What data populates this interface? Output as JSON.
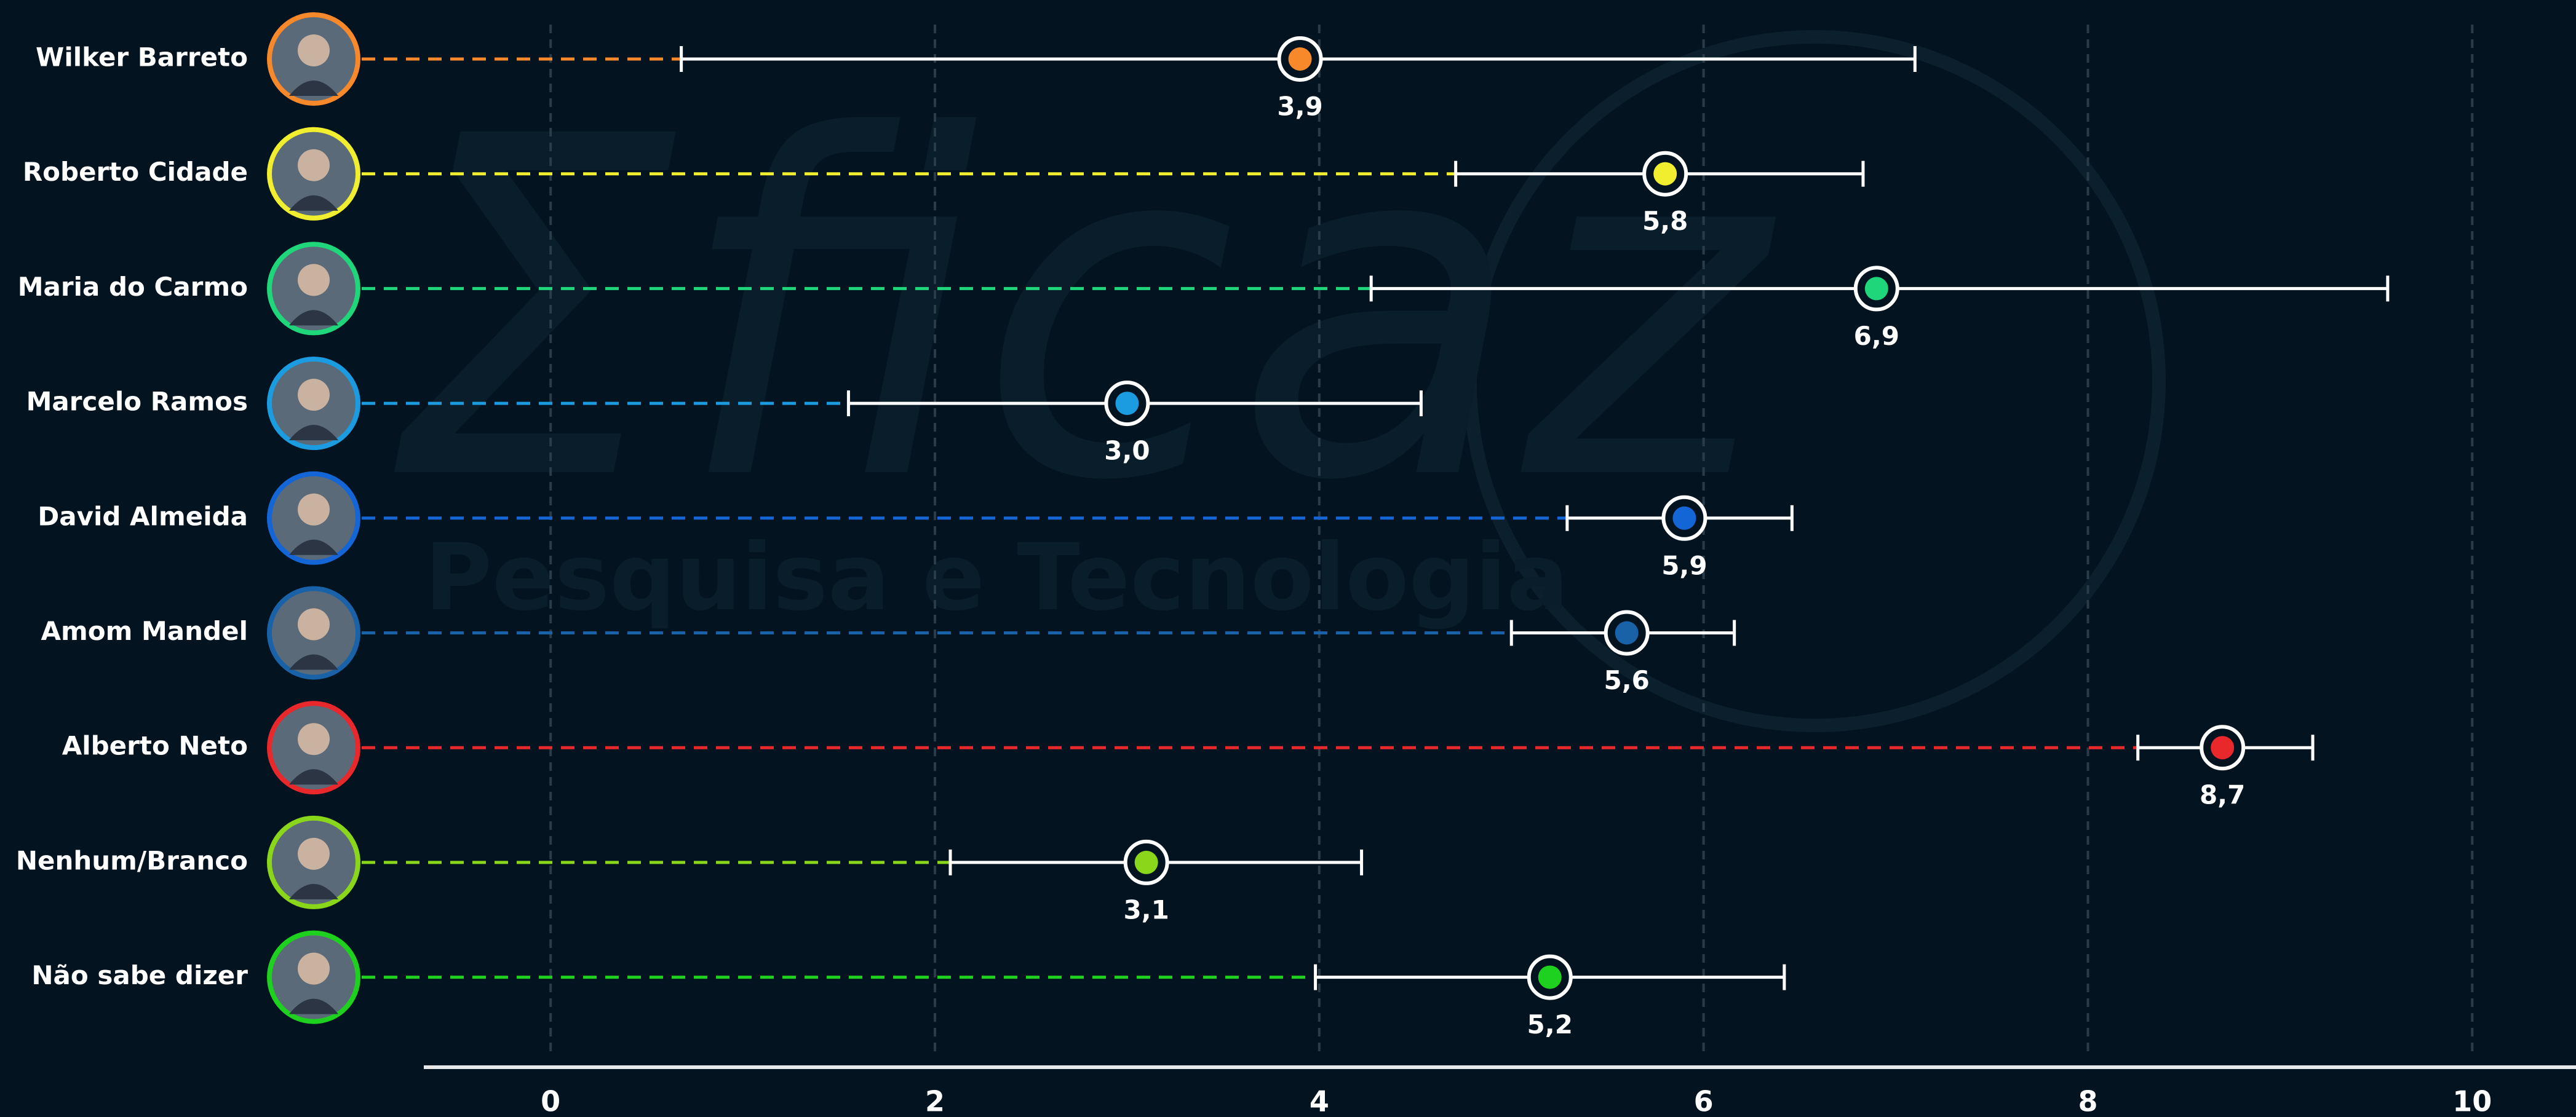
{
  "chart_data": {
    "type": "errorbar",
    "watermark": {
      "brand": "Σficaz",
      "tagline": "Pesquisa e Tecnologia"
    },
    "categories": [
      "Wilker Barreto",
      "Roberto Cidade",
      "Maria do Carmo",
      "Marcelo Ramos",
      "David Almeida",
      "Amom Mandel",
      "Alberto Neto",
      "Nenhum/Branco",
      "Não sabe dizer"
    ],
    "values": [
      3.9,
      5.8,
      6.9,
      3.0,
      5.9,
      5.6,
      8.7,
      3.1,
      5.2
    ],
    "value_labels": [
      "3,9",
      "5,8",
      "6,9",
      "3,0",
      "5,9",
      "5,6",
      "8,7",
      "3,1",
      "5,2"
    ],
    "lower": [
      0.68,
      4.71,
      4.27,
      1.55,
      5.29,
      5.0,
      8.26,
      2.08,
      3.98
    ],
    "upper": [
      7.1,
      6.83,
      9.56,
      4.53,
      6.46,
      6.16,
      9.17,
      4.22,
      6.42
    ],
    "colors": [
      "#f7892b",
      "#f0ee2e",
      "#1fd67a",
      "#1b9be0",
      "#1466d6",
      "#1a62a8",
      "#e8282b",
      "#8ad61a",
      "#1ed11e"
    ],
    "xlim": [
      -0.66,
      10.54
    ],
    "xticks": [
      0,
      2,
      4,
      6,
      8,
      10
    ],
    "grid": true
  }
}
